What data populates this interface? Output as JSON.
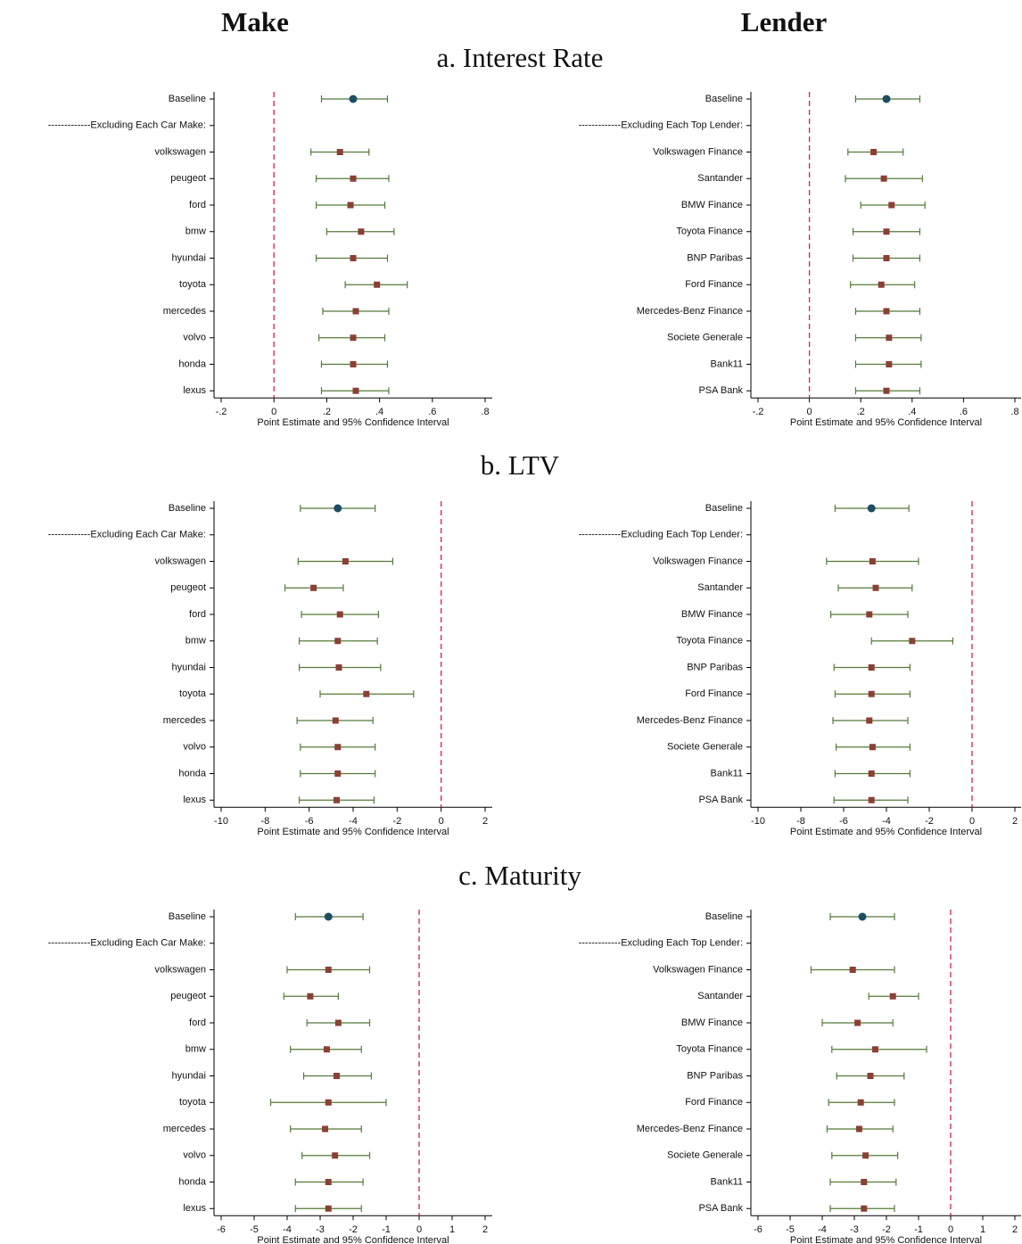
{
  "panels": {
    "columns": [
      "Make",
      "Lender"
    ],
    "rows": [
      "a. Interest Rate",
      "b. LTV",
      "c. Maturity"
    ]
  },
  "chart_data": [
    {
      "type": "errorbar",
      "xlabel": "Point Estimate and 95% Confidence Interval",
      "categories": [
        "Baseline",
        "-------------Excluding Each Car Make:",
        "volkswagen",
        "peugeot",
        "ford",
        "bmw",
        "hyundai",
        "toyota",
        "mercedes",
        "volvo",
        "honda",
        "lexus"
      ],
      "values": [
        0.3,
        null,
        0.25,
        0.3,
        0.29,
        0.33,
        0.3,
        0.39,
        0.31,
        0.3,
        0.3,
        0.31
      ],
      "lower": [
        0.18,
        null,
        0.14,
        0.16,
        0.16,
        0.2,
        0.16,
        0.27,
        0.185,
        0.17,
        0.18,
        0.18
      ],
      "upper": [
        0.43,
        null,
        0.36,
        0.435,
        0.42,
        0.455,
        0.43,
        0.505,
        0.435,
        0.42,
        0.43,
        0.435
      ],
      "colors": [
        "#1d4e63",
        null,
        "#8b3f35",
        "#8b3f35",
        "#8b3f35",
        "#8b3f35",
        "#8b3f35",
        "#8b3f35",
        "#8b3f35",
        "#8b3f35",
        "#8b3f35",
        "#8b3f35"
      ],
      "markers": [
        "circle",
        null,
        "square",
        "square",
        "square",
        "square",
        "square",
        "square",
        "square",
        "square",
        "square",
        "square"
      ],
      "bar_color": "#557a3a",
      "refline": 0,
      "refline_color": "#d0234e",
      "xlim": [
        -0.2,
        0.8
      ],
      "xticks": [
        {
          "value": -0.2,
          "label": "-.2"
        },
        0,
        {
          "value": 0.2,
          "label": ".2"
        },
        {
          "value": 0.4,
          "label": ".4"
        },
        {
          "value": 0.6,
          "label": ".6"
        },
        {
          "value": 0.8,
          "label": ".8"
        }
      ]
    },
    {
      "type": "errorbar",
      "xlabel": "Point Estimate and 95% Confidence Interval",
      "categories": [
        "Baseline",
        "-------------Excluding Each Top Lender:",
        "Volkswagen Finance",
        "Santander",
        "BMW Finance",
        "Toyota Finance",
        "BNP Paribas",
        "Ford Finance",
        "Mercedes-Benz Finance",
        "Societe Generale",
        "Bank11",
        "PSA Bank"
      ],
      "values": [
        0.3,
        null,
        0.25,
        0.29,
        0.32,
        0.3,
        0.3,
        0.28,
        0.3,
        0.31,
        0.31,
        0.3
      ],
      "lower": [
        0.18,
        null,
        0.15,
        0.14,
        0.2,
        0.17,
        0.17,
        0.16,
        0.18,
        0.18,
        0.18,
        0.18
      ],
      "upper": [
        0.43,
        null,
        0.365,
        0.44,
        0.45,
        0.43,
        0.43,
        0.41,
        0.43,
        0.435,
        0.435,
        0.43
      ],
      "colors": [
        "#1d4e63",
        null,
        "#8b3f35",
        "#8b3f35",
        "#8b3f35",
        "#8b3f35",
        "#8b3f35",
        "#8b3f35",
        "#8b3f35",
        "#8b3f35",
        "#8b3f35",
        "#8b3f35"
      ],
      "markers": [
        "circle",
        null,
        "square",
        "square",
        "square",
        "square",
        "square",
        "square",
        "square",
        "square",
        "square",
        "square"
      ],
      "bar_color": "#557a3a",
      "refline": 0,
      "refline_color": "#d0234e",
      "xlim": [
        -0.2,
        0.8
      ],
      "xticks": [
        {
          "value": -0.2,
          "label": "-.2"
        },
        0,
        {
          "value": 0.2,
          "label": ".2"
        },
        {
          "value": 0.4,
          "label": ".4"
        },
        {
          "value": 0.6,
          "label": ".6"
        },
        {
          "value": 0.8,
          "label": ".8"
        }
      ]
    },
    {
      "type": "errorbar",
      "xlabel": "Point Estimate and 95% Confidence Interval",
      "categories": [
        "Baseline",
        "-------------Excluding Each Car Make:",
        "volkswagen",
        "peugeot",
        "ford",
        "bmw",
        "hyundai",
        "toyota",
        "mercedes",
        "volvo",
        "honda",
        "lexus"
      ],
      "values": [
        -4.7,
        null,
        -4.35,
        -5.8,
        -4.6,
        -4.7,
        -4.65,
        -3.4,
        -4.8,
        -4.7,
        -4.7,
        -4.75
      ],
      "lower": [
        -6.4,
        null,
        -6.5,
        -7.1,
        -6.35,
        -6.45,
        -6.45,
        -5.5,
        -6.55,
        -6.4,
        -6.4,
        -6.45
      ],
      "upper": [
        -3.0,
        null,
        -2.2,
        -4.45,
        -2.85,
        -2.9,
        -2.75,
        -1.25,
        -3.1,
        -3.0,
        -3.0,
        -3.05
      ],
      "colors": [
        "#1d4e63",
        null,
        "#8b3f35",
        "#8b3f35",
        "#8b3f35",
        "#8b3f35",
        "#8b3f35",
        "#8b3f35",
        "#8b3f35",
        "#8b3f35",
        "#8b3f35",
        "#8b3f35"
      ],
      "markers": [
        "circle",
        null,
        "square",
        "square",
        "square",
        "square",
        "square",
        "square",
        "square",
        "square",
        "square",
        "square"
      ],
      "bar_color": "#557a3a",
      "refline": 0,
      "refline_color": "#d0234e",
      "xlim": [
        -10,
        2
      ],
      "xticks": [
        -10,
        -8,
        -6,
        -4,
        -2,
        0,
        2
      ]
    },
    {
      "type": "errorbar",
      "xlabel": "Point Estimate and 95% Confidence Interval",
      "categories": [
        "Baseline",
        "-------------Excluding Each Top Lender:",
        "Volkswagen Finance",
        "Santander",
        "BMW Finance",
        "Toyota Finance",
        "BNP Paribas",
        "Ford Finance",
        "Mercedes-Benz Finance",
        "Societe Generale",
        "Bank11",
        "PSA Bank"
      ],
      "values": [
        -4.7,
        null,
        -4.65,
        -4.5,
        -4.8,
        -2.8,
        -4.7,
        -4.7,
        -4.8,
        -4.65,
        -4.7,
        -4.7
      ],
      "lower": [
        -6.4,
        null,
        -6.8,
        -6.25,
        -6.6,
        -4.7,
        -6.45,
        -6.4,
        -6.5,
        -6.35,
        -6.4,
        -6.45
      ],
      "upper": [
        -2.95,
        null,
        -2.5,
        -2.8,
        -3.0,
        -0.9,
        -2.9,
        -2.9,
        -3.0,
        -2.9,
        -2.9,
        -3.0
      ],
      "colors": [
        "#1d4e63",
        null,
        "#8b3f35",
        "#8b3f35",
        "#8b3f35",
        "#8b3f35",
        "#8b3f35",
        "#8b3f35",
        "#8b3f35",
        "#8b3f35",
        "#8b3f35",
        "#8b3f35"
      ],
      "markers": [
        "circle",
        null,
        "square",
        "square",
        "square",
        "square",
        "square",
        "square",
        "square",
        "square",
        "square",
        "square"
      ],
      "bar_color": "#557a3a",
      "refline": 0,
      "refline_color": "#d0234e",
      "xlim": [
        -10,
        2
      ],
      "xticks": [
        -10,
        -8,
        -6,
        -4,
        -2,
        0,
        2
      ]
    },
    {
      "type": "errorbar",
      "xlabel": "Point Estimate and 95% Confidence Interval",
      "categories": [
        "Baseline",
        "-------------Excluding Each Car Make:",
        "volkswagen",
        "peugeot",
        "ford",
        "bmw",
        "hyundai",
        "toyota",
        "mercedes",
        "volvo",
        "honda",
        "lexus"
      ],
      "values": [
        -2.75,
        null,
        -2.75,
        -3.3,
        -2.45,
        -2.8,
        -2.5,
        -2.75,
        -2.85,
        -2.55,
        -2.75,
        -2.75
      ],
      "lower": [
        -3.75,
        null,
        -4.0,
        -4.1,
        -3.4,
        -3.9,
        -3.5,
        -4.5,
        -3.9,
        -3.55,
        -3.75,
        -3.75
      ],
      "upper": [
        -1.7,
        null,
        -1.5,
        -2.45,
        -1.5,
        -1.75,
        -1.45,
        -1.0,
        -1.75,
        -1.5,
        -1.7,
        -1.75
      ],
      "colors": [
        "#1d4e63",
        null,
        "#8b3f35",
        "#8b3f35",
        "#8b3f35",
        "#8b3f35",
        "#8b3f35",
        "#8b3f35",
        "#8b3f35",
        "#8b3f35",
        "#8b3f35",
        "#8b3f35"
      ],
      "markers": [
        "circle",
        null,
        "square",
        "square",
        "square",
        "square",
        "square",
        "square",
        "square",
        "square",
        "square",
        "square"
      ],
      "bar_color": "#557a3a",
      "refline": 0,
      "refline_color": "#d0234e",
      "xlim": [
        -6,
        2
      ],
      "xticks": [
        -6,
        -5,
        -4,
        -3,
        -2,
        -1,
        0,
        1,
        2
      ]
    },
    {
      "type": "errorbar",
      "xlabel": "Point Estimate and 95% Confidence Interval",
      "categories": [
        "Baseline",
        "-------------Excluding Each Top Lender:",
        "Volkswagen Finance",
        "Santander",
        "BMW Finance",
        "Toyota Finance",
        "BNP Paribas",
        "Ford Finance",
        "Mercedes-Benz Finance",
        "Societe Generale",
        "Bank11",
        "PSA Bank"
      ],
      "values": [
        -2.75,
        null,
        -3.05,
        -1.8,
        -2.9,
        -2.35,
        -2.5,
        -2.8,
        -2.85,
        -2.65,
        -2.7,
        -2.7
      ],
      "lower": [
        -3.75,
        null,
        -4.35,
        -2.55,
        -4.0,
        -3.7,
        -3.55,
        -3.8,
        -3.85,
        -3.7,
        -3.75,
        -3.75
      ],
      "upper": [
        -1.75,
        null,
        -1.75,
        -1.0,
        -1.8,
        -0.75,
        -1.45,
        -1.75,
        -1.8,
        -1.65,
        -1.7,
        -1.75
      ],
      "colors": [
        "#1d4e63",
        null,
        "#8b3f35",
        "#8b3f35",
        "#8b3f35",
        "#8b3f35",
        "#8b3f35",
        "#8b3f35",
        "#8b3f35",
        "#8b3f35",
        "#8b3f35",
        "#8b3f35"
      ],
      "markers": [
        "circle",
        null,
        "square",
        "square",
        "square",
        "square",
        "square",
        "square",
        "square",
        "square",
        "square",
        "square"
      ],
      "bar_color": "#557a3a",
      "refline": 0,
      "refline_color": "#d0234e",
      "xlim": [
        -6,
        2
      ],
      "xticks": [
        -6,
        -5,
        -4,
        -3,
        -2,
        -1,
        0,
        1,
        2
      ]
    }
  ]
}
